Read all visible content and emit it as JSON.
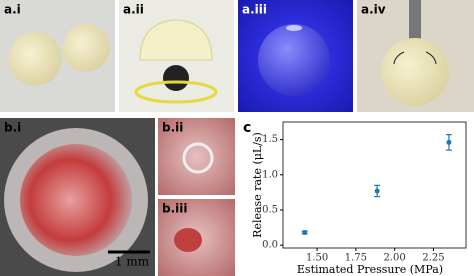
{
  "panels": {
    "a_i": "a.i",
    "a_ii": "a.ii",
    "a_iii": "a.iii",
    "a_iv": "a.iv",
    "b_i": "b.i",
    "b_ii": "b.ii",
    "b_iii": "b.iii",
    "c": "c",
    "scale_bar": "1 mm"
  },
  "chart_data": {
    "type": "errorbar",
    "x_label": "Estimated Pressure (MPa)",
    "y_label": "Release rate (μL/s)",
    "series": [
      {
        "color": "#1f77b4",
        "x": [
          1.42,
          1.887,
          2.35
        ],
        "values": [
          0.18,
          0.77,
          1.46
        ],
        "errors": [
          0.02,
          0.08,
          0.11
        ]
      }
    ],
    "xlim": [
      1.28,
      2.46
    ],
    "ylim": [
      -0.04,
      1.75
    ],
    "xticks": [
      {
        "value": 1.5,
        "label": "1.50"
      },
      {
        "value": 1.75,
        "label": "1.75"
      },
      {
        "value": 2,
        "label": "2.00"
      },
      {
        "value": 2.25,
        "label": "2.25"
      }
    ],
    "yticks": [
      {
        "value": 0,
        "label": "0.0"
      },
      {
        "value": 0.5,
        "label": "0.5"
      },
      {
        "value": 1,
        "label": "1.0"
      },
      {
        "value": 1.5,
        "label": "1.5"
      }
    ],
    "grid": false
  }
}
